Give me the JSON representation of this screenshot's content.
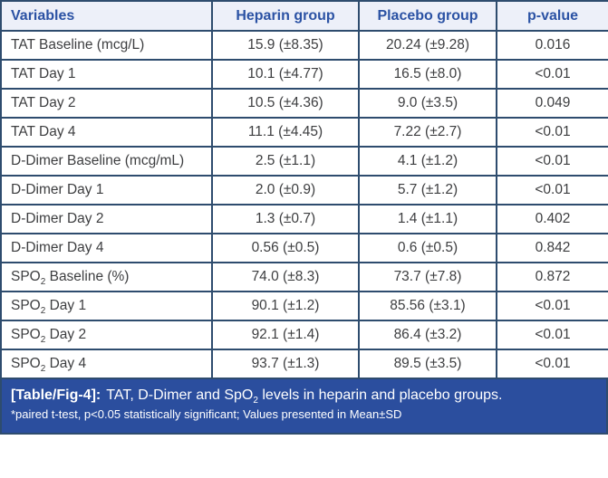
{
  "colors": {
    "border": "#2e4c6e",
    "header_bg": "#edf0f9",
    "header_text": "#2b52a4",
    "body_text": "#3d3e40",
    "caption_bg": "#2b4e9e",
    "caption_text": "#ffffff"
  },
  "table": {
    "columns": [
      "Variables",
      "Heparin group",
      "Placebo group",
      "p-value"
    ],
    "rows": [
      {
        "variable": {
          "pre": "TAT Baseline (mcg/L)",
          "sub": "",
          "post": ""
        },
        "heparin": "15.9 (±8.35)",
        "placebo": "20.24 (±9.28)",
        "p_value": "0.016"
      },
      {
        "variable": {
          "pre": "TAT Day 1",
          "sub": "",
          "post": ""
        },
        "heparin": "10.1 (±4.77)",
        "placebo": "16.5 (±8.0)",
        "p_value": "<0.01"
      },
      {
        "variable": {
          "pre": "TAT Day 2",
          "sub": "",
          "post": ""
        },
        "heparin": "10.5 (±4.36)",
        "placebo": "9.0 (±3.5)",
        "p_value": "0.049"
      },
      {
        "variable": {
          "pre": "TAT Day 4",
          "sub": "",
          "post": ""
        },
        "heparin": "11.1 (±4.45)",
        "placebo": "7.22 (±2.7)",
        "p_value": "<0.01"
      },
      {
        "variable": {
          "pre": "D-Dimer Baseline (mcg/mL)",
          "sub": "",
          "post": ""
        },
        "heparin": "2.5 (±1.1)",
        "placebo": "4.1 (±1.2)",
        "p_value": "<0.01"
      },
      {
        "variable": {
          "pre": "D-Dimer Day 1",
          "sub": "",
          "post": ""
        },
        "heparin": "2.0 (±0.9)",
        "placebo": "5.7 (±1.2)",
        "p_value": "<0.01"
      },
      {
        "variable": {
          "pre": "D-Dimer Day 2",
          "sub": "",
          "post": ""
        },
        "heparin": "1.3 (±0.7)",
        "placebo": "1.4 (±1.1)",
        "p_value": "0.402"
      },
      {
        "variable": {
          "pre": "D-Dimer Day 4",
          "sub": "",
          "post": ""
        },
        "heparin": "0.56 (±0.5)",
        "placebo": "0.6 (±0.5)",
        "p_value": "0.842"
      },
      {
        "variable": {
          "pre": "SPO",
          "sub": "2",
          "post": " Baseline (%)"
        },
        "heparin": "74.0 (±8.3)",
        "placebo": "73.7 (±7.8)",
        "p_value": "0.872"
      },
      {
        "variable": {
          "pre": "SPO",
          "sub": "2",
          "post": " Day 1"
        },
        "heparin": "90.1 (±1.2)",
        "placebo": "85.56 (±3.1)",
        "p_value": "<0.01"
      },
      {
        "variable": {
          "pre": "SPO",
          "sub": "2",
          "post": " Day 2"
        },
        "heparin": "92.1 (±1.4)",
        "placebo": "86.4 (±3.2)",
        "p_value": "<0.01"
      },
      {
        "variable": {
          "pre": "SPO",
          "sub": "2",
          "post": " Day 4"
        },
        "heparin": "93.7 (±1.3)",
        "placebo": "89.5 (±3.5)",
        "p_value": "<0.01"
      }
    ]
  },
  "caption": {
    "label": "[Table/Fig-4]:",
    "title_pre": "TAT, D-Dimer and SpO",
    "title_sub": "2",
    "title_post": " levels in heparin and placebo groups.",
    "footnote": "*paired t-test, p<0.05 statistically significant; Values presented in Mean±SD"
  }
}
